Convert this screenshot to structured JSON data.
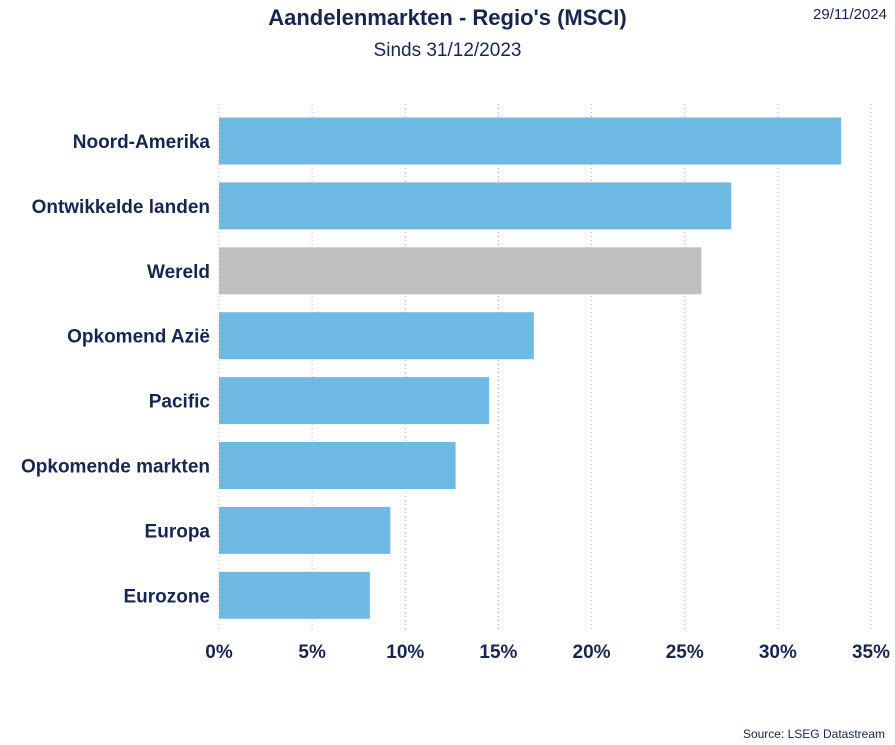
{
  "header": {
    "title": "Aandelenmarkten - Regio's (MSCI)",
    "subtitle": "Sinds 31/12/2023",
    "date": "29/11/2024"
  },
  "footer": {
    "source": "Source: LSEG Datastream"
  },
  "chart_data": {
    "type": "bar",
    "orientation": "horizontal",
    "title": "Aandelenmarkten - Regio's (MSCI)",
    "subtitle": "Sinds 31/12/2023",
    "categories": [
      "Noord-Amerika",
      "Ontwikkelde landen",
      "Wereld",
      "Opkomend Azië",
      "Pacific",
      "Opkomende markten",
      "Europa",
      "Eurozone"
    ],
    "values": [
      33.4,
      27.5,
      25.9,
      16.9,
      14.5,
      12.7,
      9.2,
      8.1
    ],
    "unit": "%",
    "xlim": [
      0,
      35
    ],
    "x_ticks": [
      "0%",
      "5%",
      "10%",
      "15%",
      "20%",
      "25%",
      "30%",
      "35%"
    ],
    "grid": "vertical dotted",
    "colors": {
      "default": "#6fb9e5",
      "highlight": "#bfbfbf",
      "highlight_category": "Wereld",
      "text": "#16264f"
    }
  }
}
